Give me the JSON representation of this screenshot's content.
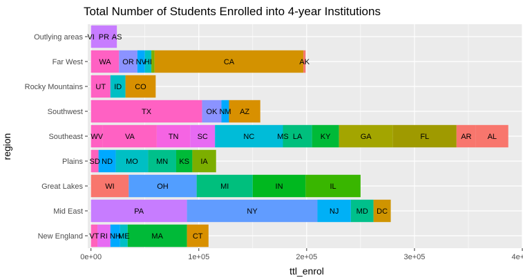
{
  "chart_data": {
    "type": "bar",
    "orientation": "horizontal",
    "stacked": true,
    "title": "Total Number of Students Enrolled into 4-year Institutions",
    "xlabel": "ttl_enrol",
    "ylabel": "region",
    "xlim": [
      -3000,
      400000
    ],
    "xticks": [
      {
        "value": 0,
        "label": "0e+00"
      },
      {
        "value": 100000,
        "label": "1e+05"
      },
      {
        "value": 200000,
        "label": "2e+05"
      },
      {
        "value": 300000,
        "label": "3e+05"
      },
      {
        "value": 400000,
        "label": "4e+05"
      }
    ],
    "grid": true,
    "legend": "none",
    "categories": [
      "New England",
      "Mid East",
      "Great Lakes",
      "Plains",
      "Southeast",
      "Southwest",
      "Rocky Mountains",
      "Far West",
      "Outlying areas"
    ],
    "bars": [
      {
        "region": "New England",
        "segments": [
          {
            "label": "VT",
            "value": 6000,
            "color": "#FF62BC"
          },
          {
            "label": "RI",
            "value": 12000,
            "color": "#E76BF3"
          },
          {
            "label": "NH",
            "value": 9000,
            "color": "#00A9FF"
          },
          {
            "label": "ME",
            "value": 7000,
            "color": "#00BFC4"
          },
          {
            "label": "MA",
            "value": 55000,
            "color": "#00BA38"
          },
          {
            "label": "CT",
            "value": 20000,
            "color": "#D89000"
          }
        ]
      },
      {
        "region": "Mid East",
        "segments": [
          {
            "label": "PA",
            "value": 89000,
            "color": "#C77CFF"
          },
          {
            "label": "NY",
            "value": 121000,
            "color": "#619CFF"
          },
          {
            "label": "NJ",
            "value": 31000,
            "color": "#00B0F6"
          },
          {
            "label": "MD",
            "value": 21000,
            "color": "#00C08B"
          },
          {
            "label": "DC",
            "value": 16000,
            "color": "#CF9400"
          }
        ]
      },
      {
        "region": "Great Lakes",
        "segments": [
          {
            "label": "WI",
            "value": 35000,
            "color": "#F8766D"
          },
          {
            "label": "OH",
            "value": 63000,
            "color": "#529EFF"
          },
          {
            "label": "MI",
            "value": 52000,
            "color": "#00BF7D"
          },
          {
            "label": "IN",
            "value": 49000,
            "color": "#00B81F"
          },
          {
            "label": "IL",
            "value": 51000,
            "color": "#39B600"
          }
        ]
      },
      {
        "region": "Plains",
        "segments": [
          {
            "label": "SD",
            "value": 7000,
            "color": "#FF62BC"
          },
          {
            "label": "ND",
            "value": 16000,
            "color": "#00A9FF"
          },
          {
            "label": "MO",
            "value": 30000,
            "color": "#00BFC4"
          },
          {
            "label": "MN",
            "value": 26000,
            "color": "#00C08B"
          },
          {
            "label": "KS",
            "value": 15000,
            "color": "#00BA38"
          },
          {
            "label": "IA",
            "value": 22000,
            "color": "#7CAE00"
          }
        ]
      },
      {
        "region": "Southeast",
        "segments": [
          {
            "label": "WV",
            "value": 11000,
            "color": "#FF61C3"
          },
          {
            "label": "VA",
            "value": 50000,
            "color": "#FF61C3"
          },
          {
            "label": "TN",
            "value": 31000,
            "color": "#F564E3"
          },
          {
            "label": "SC",
            "value": 23000,
            "color": "#E76BF3"
          },
          {
            "label": "NC",
            "value": 63000,
            "color": "#00BCD8"
          },
          {
            "label": "MS",
            "value": 0,
            "color": "#00BCD8"
          },
          {
            "label": "LA",
            "value": 27000,
            "color": "#00BF7D"
          },
          {
            "label": "KY",
            "value": 25000,
            "color": "#00BA38"
          },
          {
            "label": "GA",
            "value": 50000,
            "color": "#A3A500"
          },
          {
            "label": "FL",
            "value": 59000,
            "color": "#9F9A00"
          },
          {
            "label": "AR",
            "value": 18000,
            "color": "#F8766D"
          },
          {
            "label": "AL",
            "value": 30000,
            "color": "#F8766D"
          }
        ]
      },
      {
        "region": "Southwest",
        "segments": [
          {
            "label": "TX",
            "value": 103000,
            "color": "#FF61C3"
          },
          {
            "label": "OK",
            "value": 18000,
            "color": "#8B93FF"
          },
          {
            "label": "NM",
            "value": 7000,
            "color": "#00A9FF"
          },
          {
            "label": "AZ",
            "value": 29000,
            "color": "#D89000"
          }
        ]
      },
      {
        "region": "Rocky Mountains",
        "segments": [
          {
            "label": "UT",
            "value": 18000,
            "color": "#FF61C3"
          },
          {
            "label": "ID",
            "value": 14000,
            "color": "#00BFC4"
          },
          {
            "label": "CO",
            "value": 28000,
            "color": "#D89000"
          }
        ]
      },
      {
        "region": "Far West",
        "segments": [
          {
            "label": "WA",
            "value": 26000,
            "color": "#FF61C3"
          },
          {
            "label": "OR",
            "value": 17000,
            "color": "#8B93FF"
          },
          {
            "label": "NV",
            "value": 7000,
            "color": "#00A9FF"
          },
          {
            "label": "HI",
            "value": 6000,
            "color": "#00BFC4"
          },
          {
            "label": "",
            "value": 3000,
            "color": "#7CAE00"
          },
          {
            "label": "CA",
            "value": 138000,
            "color": "#D39200"
          },
          {
            "label": "AK",
            "value": 2000,
            "color": "#F8766D"
          }
        ]
      },
      {
        "region": "Outlying areas",
        "segments": [
          {
            "label": "VI",
            "value": 0,
            "color": "#C77CFF"
          },
          {
            "label": "PR",
            "value": 24000,
            "color": "#C77CFF"
          },
          {
            "label": "AS",
            "value": 0,
            "color": "#C77CFF"
          }
        ]
      }
    ]
  }
}
